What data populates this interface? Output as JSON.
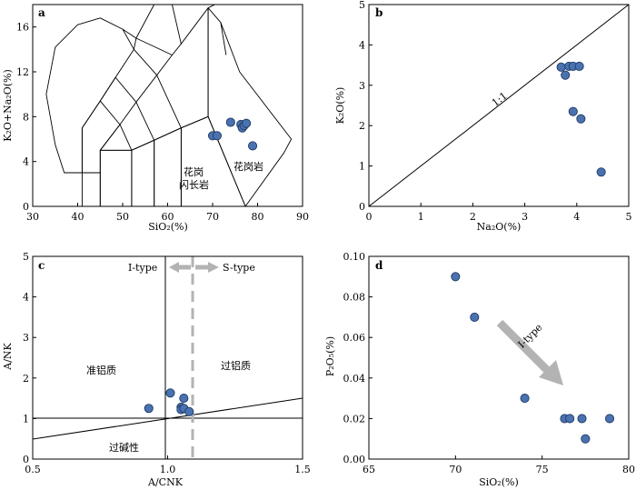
{
  "chart_data": [
    {
      "panel": "a",
      "type": "scatter",
      "xlabel": "SiO₂(%)",
      "ylabel": "K₂O+Na₂O(%)",
      "xlim": [
        30,
        90
      ],
      "ylim": [
        0,
        18
      ],
      "xticks": [
        "30",
        "40",
        "50",
        "60",
        "70",
        "80",
        "90"
      ],
      "yticks": [
        "0",
        "4",
        "8",
        "12",
        "16"
      ],
      "field_labels": [
        "花岗",
        "闪长岩",
        "花岗岩"
      ],
      "tas_fields": [
        [
          [
            41,
            0
          ],
          [
            41,
            3
          ],
          [
            45,
            3
          ],
          [
            45,
            0
          ]
        ],
        [
          [
            45,
            0
          ],
          [
            45,
            5
          ],
          [
            52,
            5
          ],
          [
            52,
            0
          ]
        ],
        [
          [
            52,
            0
          ],
          [
            52,
            5
          ],
          [
            57,
            5.9
          ],
          [
            57,
            0
          ]
        ],
        [
          [
            57,
            0
          ],
          [
            57,
            5.9
          ],
          [
            63,
            7
          ],
          [
            63,
            0
          ]
        ],
        [
          [
            63,
            0
          ],
          [
            63,
            7
          ],
          [
            69,
            8
          ],
          [
            77.3,
            0
          ]
        ],
        [
          [
            41,
            3
          ],
          [
            41,
            7
          ],
          [
            45,
            9.4
          ],
          [
            49.4,
            7.3
          ],
          [
            45,
            5
          ],
          [
            45,
            3
          ]
        ],
        [
          [
            45,
            5
          ],
          [
            49.4,
            7.3
          ],
          [
            53,
            9.3
          ],
          [
            57.6,
            11.7
          ],
          [
            61,
            13.5
          ],
          [
            63,
            14.5
          ],
          [
            69,
            17.7
          ],
          [
            69,
            8
          ],
          [
            63,
            7
          ],
          [
            57,
            5.9
          ],
          [
            52,
            5
          ]
        ],
        [
          [
            77.3,
            0
          ],
          [
            69,
            8
          ],
          [
            69,
            17.7
          ],
          [
            71.8,
            16.4
          ],
          [
            76,
            12
          ],
          [
            87.5,
            6
          ],
          [
            85.9,
            4.8
          ]
        ],
        [
          [
            37,
            3
          ],
          [
            41,
            3
          ],
          [
            41,
            7
          ],
          [
            45,
            9.4
          ],
          [
            48.4,
            11.5
          ],
          [
            52.5,
            14
          ],
          [
            50,
            15.8
          ],
          [
            45,
            16.8
          ],
          [
            40,
            16.2
          ],
          [
            35,
            14.2
          ],
          [
            33,
            10
          ],
          [
            35,
            5.5
          ]
        ]
      ],
      "tas_lines": [
        [
          [
            49.4,
            7.3
          ],
          [
            52,
            5
          ]
        ],
        [
          [
            53,
            9.3
          ],
          [
            57,
            5.9
          ]
        ],
        [
          [
            57.6,
            11.7
          ],
          [
            63,
            7
          ]
        ],
        [
          [
            45,
            9.4
          ],
          [
            48.4,
            11.5
          ]
        ],
        [
          [
            48.4,
            11.5
          ],
          [
            53,
            9.3
          ]
        ],
        [
          [
            52.5,
            14
          ],
          [
            57.6,
            11.7
          ]
        ],
        [
          [
            50,
            15.8
          ],
          [
            53,
            15
          ]
        ],
        [
          [
            53,
            15
          ],
          [
            61,
            13.5
          ]
        ],
        [
          [
            52.5,
            14
          ],
          [
            53,
            15
          ]
        ],
        [
          [
            53,
            15
          ],
          [
            57,
            18
          ]
        ],
        [
          [
            63,
            14.5
          ],
          [
            61,
            18
          ]
        ],
        [
          [
            69,
            17.7
          ],
          [
            70.5,
            18
          ]
        ],
        [
          [
            71.8,
            16.4
          ],
          [
            73,
            13.5
          ]
        ]
      ],
      "points": [
        [
          70.0,
          6.3
        ],
        [
          71.0,
          6.3
        ],
        [
          74.0,
          7.5
        ],
        [
          76.3,
          7.3
        ],
        [
          76.6,
          7.0
        ],
        [
          77.0,
          7.2
        ],
        [
          77.5,
          7.4
        ],
        [
          78.9,
          5.4
        ]
      ]
    },
    {
      "panel": "b",
      "type": "scatter",
      "xlabel": "Na₂O(%)",
      "ylabel": "K₂O(%)",
      "xlim": [
        0,
        5
      ],
      "ylim": [
        0,
        5
      ],
      "xticks": [
        "0",
        "1",
        "2",
        "3",
        "4",
        "5"
      ],
      "yticks": [
        "0",
        "1",
        "2",
        "3",
        "4",
        "5"
      ],
      "line_label": "1:1",
      "points": [
        [
          3.7,
          3.45
        ],
        [
          3.78,
          3.25
        ],
        [
          3.85,
          3.47
        ],
        [
          3.93,
          3.47
        ],
        [
          4.05,
          3.47
        ],
        [
          3.93,
          2.35
        ],
        [
          4.08,
          2.17
        ],
        [
          4.47,
          0.85
        ]
      ]
    },
    {
      "panel": "c",
      "type": "scatter",
      "xlabel": "A/CNK",
      "ylabel": "A/NK",
      "xlim": [
        0.5,
        1.5
      ],
      "ylim": [
        0,
        5
      ],
      "xticks": [
        "0.5",
        "1.0",
        "1.5"
      ],
      "yticks": [
        "0",
        "1",
        "2",
        "3",
        "4",
        "5"
      ],
      "region_labels": [
        "准铝质",
        "过铝质",
        "过碱性"
      ],
      "type_labels": [
        "I-type",
        "S-type"
      ],
      "points": [
        [
          0.93,
          1.25
        ],
        [
          1.01,
          1.63
        ],
        [
          1.05,
          1.28
        ],
        [
          1.05,
          1.22
        ],
        [
          1.06,
          1.5
        ],
        [
          1.06,
          1.25
        ],
        [
          1.08,
          1.17
        ]
      ]
    },
    {
      "panel": "d",
      "type": "scatter",
      "xlabel": "SiO₂(%)",
      "ylabel": "P₂O₅(%)",
      "xlim": [
        65,
        80
      ],
      "ylim": [
        0,
        0.1
      ],
      "xticks": [
        "65",
        "70",
        "75",
        "80"
      ],
      "yticks": [
        "0.00",
        "0.02",
        "0.04",
        "0.06",
        "0.08",
        "0.10"
      ],
      "trend_label": "I-type",
      "points": [
        [
          70.0,
          0.09
        ],
        [
          71.1,
          0.07
        ],
        [
          74.0,
          0.03
        ],
        [
          76.3,
          0.02
        ],
        [
          76.6,
          0.02
        ],
        [
          77.3,
          0.02
        ],
        [
          77.5,
          0.01
        ],
        [
          78.9,
          0.02
        ]
      ]
    }
  ]
}
